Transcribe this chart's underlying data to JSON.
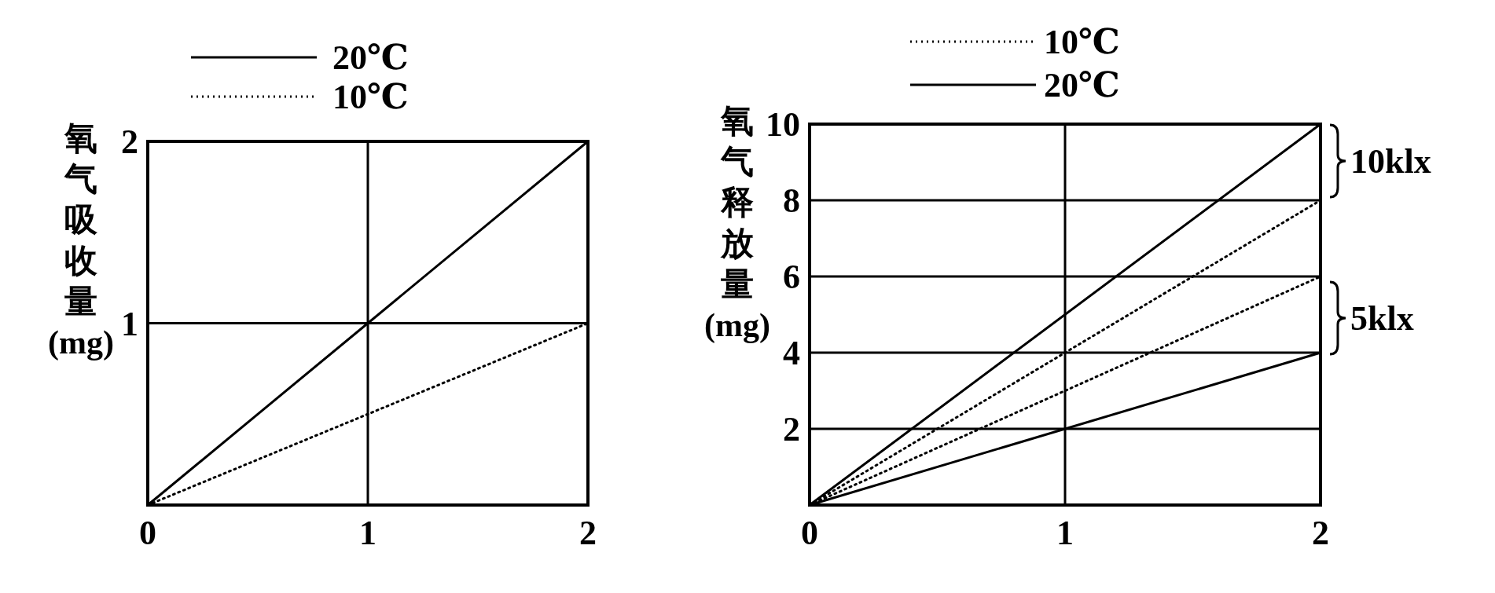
{
  "chart_data": [
    {
      "type": "line",
      "ylabel": "氧气吸收量(mg)",
      "x": [
        0,
        1,
        2
      ],
      "xlim": [
        0,
        2
      ],
      "ylim": [
        0,
        2
      ],
      "xticks": [
        0,
        1,
        2
      ],
      "yticks": [
        1,
        2
      ],
      "grid": true,
      "legend": "top",
      "series": [
        {
          "name": "20℃",
          "color": "#000000",
          "line_style": "solid",
          "values": [
            0,
            1,
            2
          ]
        },
        {
          "name": "10℃",
          "color": "#000000",
          "line_style": "dotted",
          "values": [
            0,
            0.5,
            1
          ]
        }
      ]
    },
    {
      "type": "line",
      "ylabel": "氧气释放量(mg)",
      "x": [
        0,
        2
      ],
      "xlim": [
        0,
        2
      ],
      "ylim": [
        0,
        10
      ],
      "xticks": [
        0,
        1,
        2
      ],
      "yticks": [
        2,
        4,
        6,
        8,
        10
      ],
      "grid": true,
      "legend": "top",
      "annotations": [
        "10klx",
        "5klx"
      ],
      "series": [
        {
          "name": "10℃",
          "color": "#000000",
          "line_style": "dotted",
          "values": [
            0,
            8
          ]
        },
        {
          "name": "20℃",
          "color": "#000000",
          "line_style": "solid",
          "values": [
            0,
            10
          ]
        },
        {
          "name": "10℃",
          "color": "#000000",
          "line_style": "dotted",
          "values": [
            0,
            6
          ]
        },
        {
          "name": "20℃",
          "color": "#000000",
          "line_style": "solid",
          "values": [
            0,
            4
          ]
        }
      ]
    }
  ]
}
